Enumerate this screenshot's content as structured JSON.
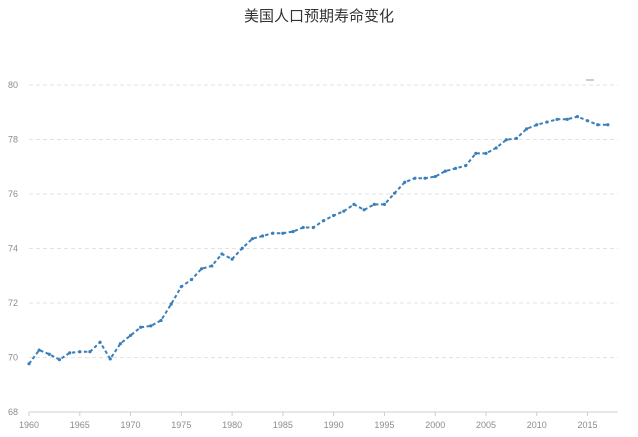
{
  "chart_data": {
    "type": "line",
    "title": "美国人口预期寿命变化",
    "xlabel": "",
    "ylabel": "",
    "xlim": [
      1960,
      2018
    ],
    "ylim": [
      68,
      80
    ],
    "x_ticks": [
      1960,
      1965,
      1970,
      1975,
      1980,
      1985,
      1990,
      1995,
      2000,
      2005,
      2010,
      2015
    ],
    "y_ticks": [
      68,
      70,
      72,
      74,
      76,
      78,
      80
    ],
    "grid": true,
    "legend": "top-right",
    "colors": {
      "series": "#3a7fba",
      "grid": "#e3e3e3",
      "text": "#8c8c8c"
    },
    "x": [
      1960,
      1961,
      1962,
      1963,
      1964,
      1965,
      1966,
      1967,
      1968,
      1969,
      1970,
      1971,
      1972,
      1973,
      1974,
      1975,
      1976,
      1977,
      1978,
      1979,
      1980,
      1981,
      1982,
      1983,
      1984,
      1985,
      1986,
      1987,
      1988,
      1989,
      1990,
      1991,
      1992,
      1993,
      1994,
      1995,
      1996,
      1997,
      1998,
      1999,
      2000,
      2001,
      2002,
      2003,
      2004,
      2005,
      2006,
      2007,
      2008,
      2009,
      2010,
      2011,
      2012,
      2013,
      2014,
      2015,
      2016,
      2017
    ],
    "series": [
      {
        "values": [
          69.77,
          70.27,
          70.12,
          69.92,
          70.17,
          70.21,
          70.21,
          70.56,
          69.95,
          70.51,
          70.81,
          71.11,
          71.16,
          71.36,
          71.96,
          72.6,
          72.86,
          73.26,
          73.36,
          73.8,
          73.61,
          74.01,
          74.36,
          74.46,
          74.56,
          74.56,
          74.62,
          74.77,
          74.77,
          75.02,
          75.21,
          75.37,
          75.62,
          75.42,
          75.62,
          75.62,
          76.03,
          76.43,
          76.58,
          76.58,
          76.64,
          76.84,
          76.94,
          77.04,
          77.49,
          77.49,
          77.69,
          77.99,
          78.04,
          78.39,
          78.54,
          78.64,
          78.74,
          78.74,
          78.84,
          78.69,
          78.54,
          78.54
        ]
      }
    ]
  }
}
